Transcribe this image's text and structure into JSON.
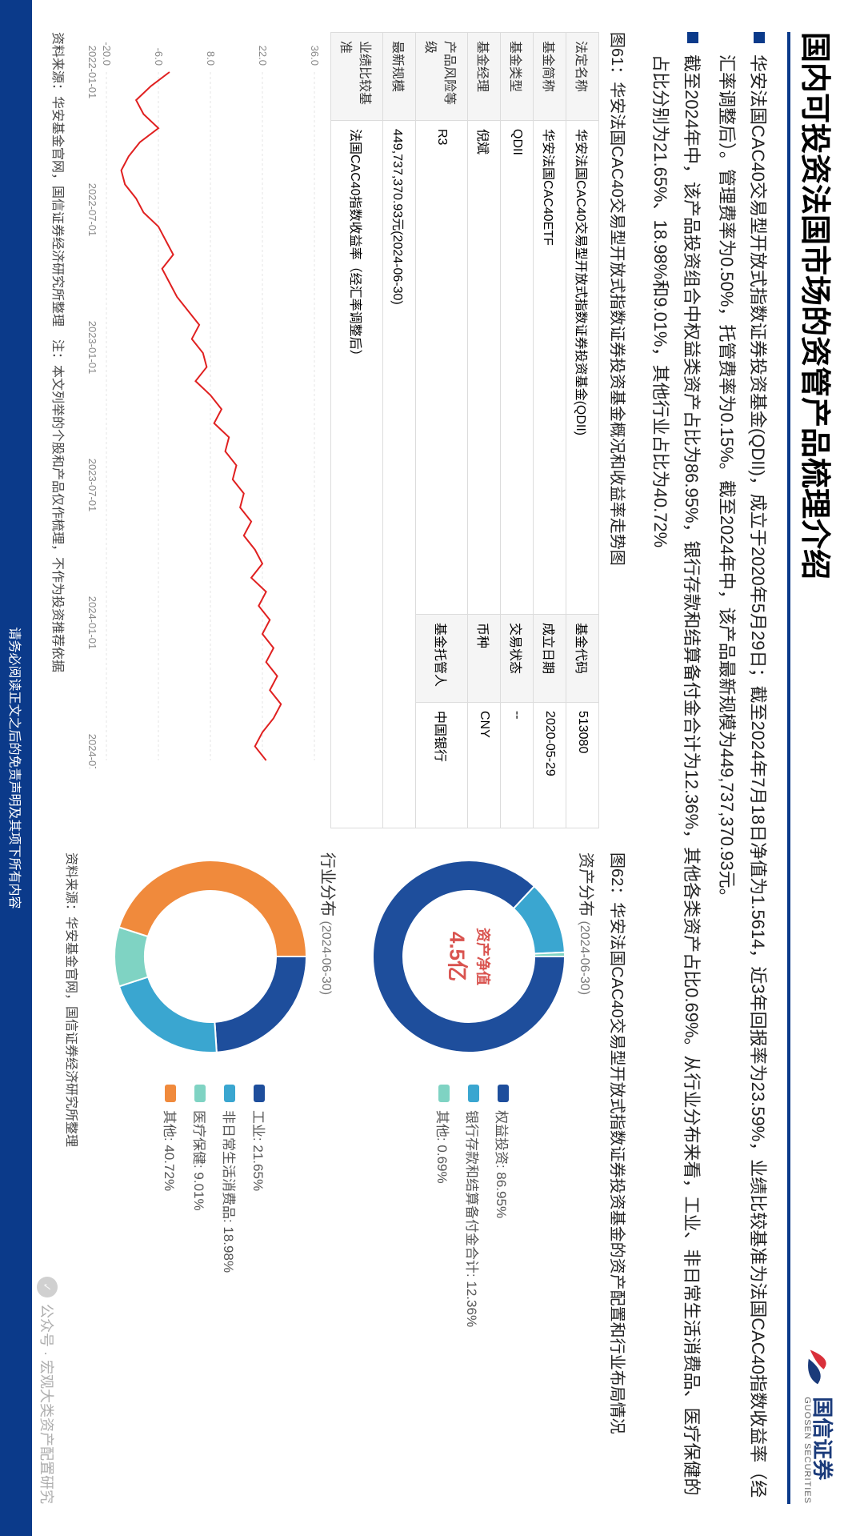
{
  "header": {
    "title": "国内可投资法国市场的资管产品梳理介绍",
    "company": "国信证券",
    "company_en": "GUOSEN SECURITIES",
    "logo_colors": {
      "red": "#d9303a",
      "blue": "#1a3a7a"
    }
  },
  "bullets": [
    "华安法国CAC40交易型开放式指数证券投资基金(QDII)，成立于2020年5月29日；截至2024年7月18日净值为1.5614，近3年回报率为23.59%，业绩比较基准为法国CAC40指数收益率（经汇率调整后）。管理费率为0.50%，托管费率为0.15%。截至2024年中，该产品最新规模为449,737,370.93元。",
    "截至2024年中，该产品投资组合中权益类资产占比为86.95%，银行存款和结算备付金合计为12.36%，其他各类资产占比0.69%。从行业分布来看，工业、非日常生活消费品、医疗保健的占比分别为21.65%、18.98%和9.01%，其他行业占比为40.72%"
  ],
  "fig61": {
    "title": "图61：华安法国CAC40交易型开放式指数证券投资基金概况和收益率走势图",
    "table": {
      "rows": [
        [
          "法定名称",
          "华安法国CAC40交易型开放式指数证券投资基金(QDII)",
          "基金代码",
          "513080"
        ],
        [
          "基金简称",
          "华安法国CAC40ETF",
          "成立日期",
          "2020-05-29"
        ],
        [
          "基金类型",
          "QDII",
          "交易状态",
          "--"
        ],
        [
          "基金经理",
          "倪斌",
          "币种",
          "CNY"
        ],
        [
          "产品风险等级",
          "R3",
          "基金托管人",
          "中国银行"
        ],
        [
          "最新规模",
          "449,737,370.93元(2024-06-30)",
          "",
          ""
        ],
        [
          "业绩比较基准",
          "法国CAC40指数收益率（经汇率调整后）",
          "",
          ""
        ]
      ]
    },
    "chart": {
      "type": "line",
      "color": "#e02020",
      "background": "#ffffff",
      "grid_color": "#e6e6e6",
      "ylim": [
        -20,
        36
      ],
      "yticks": [
        -20,
        -6,
        8,
        22,
        36
      ],
      "xticks": [
        "2022-01-01",
        "2022-07-01",
        "2023-01-01",
        "2023-07-01",
        "2024-01-01",
        "2024-07-01"
      ],
      "series": [
        -3,
        -8,
        -12,
        -10,
        -6,
        -11,
        -14,
        -16,
        -15,
        -12,
        -10,
        -6,
        -4,
        -2,
        -5,
        -3,
        -1,
        2,
        5,
        3,
        6,
        7,
        4,
        8,
        11,
        9,
        13,
        12,
        15,
        14,
        17,
        16,
        19,
        17,
        20,
        22,
        19,
        23,
        21,
        24,
        22,
        25,
        23,
        26,
        24,
        27,
        25,
        22,
        20,
        23
      ],
      "label_fontsize": 13,
      "axis_color": "#888888"
    },
    "source": "资料来源：华安基金官网，国信证券经济研究所整理　注：本文列举的个股和产品仅作梳理，不作为投资推荐依据"
  },
  "fig62": {
    "title": "图62：华安法国CAC40交易型开放式指数证券投资基金的资产配置和行业布局情况",
    "asset": {
      "heading": "资产分布",
      "date": "(2024-06-30)",
      "center_label": "资产净值",
      "center_value": "4.5亿",
      "items": [
        {
          "label": "权益投资",
          "pct": 86.95,
          "color": "#1e4e9c"
        },
        {
          "label": "银行存款和结算备付金合计",
          "pct": 12.36,
          "color": "#3aa6d0"
        },
        {
          "label": "其他",
          "pct": 0.69,
          "color": "#7fd3c3"
        }
      ],
      "ring_width": 38
    },
    "sector": {
      "heading": "行业分布",
      "date": "(2024-06-30)",
      "items": [
        {
          "label": "工业",
          "pct": 21.65,
          "color": "#1e4e9c"
        },
        {
          "label": "非日常生活消费品",
          "pct": 18.98,
          "color": "#3aa6d0"
        },
        {
          "label": "医疗保健",
          "pct": 9.01,
          "color": "#7fd3c3"
        },
        {
          "label": "其他",
          "pct": 40.72,
          "color": "#f08a3c"
        }
      ],
      "ring_width": 38
    },
    "source": "资料来源：华安基金官网，国信证券经济研究所整理"
  },
  "footer": "请务必阅读正文之后的免责声明及其项下所有内容",
  "watermark": "公众号 · 宏观大类资产配置研究"
}
